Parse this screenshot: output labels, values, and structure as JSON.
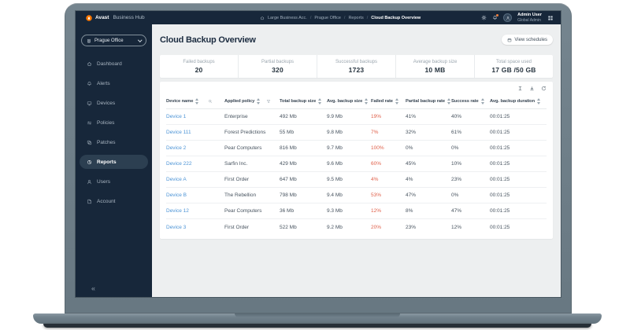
{
  "brand": {
    "name_bold": "Avast",
    "name_rest": "Business Hub"
  },
  "topbar": {
    "breadcrumb_icon": "home",
    "breadcrumb": [
      "Large Business Acc.",
      "Prague Office",
      "Reports",
      "Cloud Backup Overview"
    ],
    "right_icons": [
      "settings",
      "notifications"
    ],
    "apps_icon": "apps",
    "user": {
      "name": "Admin User",
      "role": "Global Admin",
      "avatar_icon": "person"
    }
  },
  "sidebar": {
    "site_selector": {
      "label": "Prague Office",
      "icon": "building",
      "chevron": "chevron-down"
    },
    "items": [
      {
        "label": "Dashboard",
        "icon": "dashboard",
        "active": false
      },
      {
        "label": "Alerts",
        "icon": "alerts",
        "active": false
      },
      {
        "label": "Devices",
        "icon": "devices",
        "active": false
      },
      {
        "label": "Policies",
        "icon": "policies",
        "active": false
      },
      {
        "label": "Patches",
        "icon": "patches",
        "active": false
      },
      {
        "label": "Reports",
        "icon": "reports",
        "active": true
      },
      {
        "label": "Users",
        "icon": "users",
        "active": false
      },
      {
        "label": "Account",
        "icon": "account",
        "active": false
      }
    ],
    "collapse_label": "«"
  },
  "page": {
    "title": "Cloud Backup Overview",
    "actions": [
      {
        "label": "View schedules",
        "icon": "calendar"
      }
    ]
  },
  "stats": [
    {
      "label": "Failed backups",
      "value": "20"
    },
    {
      "label": "Partial backups",
      "value": "320"
    },
    {
      "label": "Successful backups",
      "value": "1723"
    },
    {
      "label": "Average backup size",
      "value": "10 MB"
    },
    {
      "label": "Total space used",
      "value": "17 GB /50 GB"
    }
  ],
  "table": {
    "toolbar_icons": [
      "column-height",
      "download",
      "refresh"
    ],
    "columns": [
      {
        "label": "Device name",
        "sortable": true,
        "icon": "search"
      },
      {
        "label": "Applied policy",
        "sortable": true,
        "icon": "filter"
      },
      {
        "label": "Total backup size",
        "sortable": true
      },
      {
        "label": "Avg. backup size",
        "sortable": true
      },
      {
        "label": "Failed rate",
        "sortable": true
      },
      {
        "label": "Partial backup rate",
        "sortable": true
      },
      {
        "label": "Success rate",
        "sortable": true
      },
      {
        "label": "Avg. backup duration",
        "sortable": true
      }
    ],
    "rows": [
      [
        "Device 1",
        "Enterprise",
        "492 Mb",
        "9.9 Mb",
        "19%",
        "41%",
        "40%",
        "00:01:25"
      ],
      [
        "Device 111",
        "Forest Predictions",
        "55 Mb",
        "9.8 Mb",
        "7%",
        "32%",
        "61%",
        "00:01:25"
      ],
      [
        "Device 2",
        "Pear Computers",
        "816 Mb",
        "9.7 Mb",
        "100%",
        "0%",
        "0%",
        "00:01:25"
      ],
      [
        "Device 222",
        "Sarfin Inc.",
        "429 Mb",
        "9.6 Mb",
        "60%",
        "45%",
        "10%",
        "00:01:25"
      ],
      [
        "Device A",
        "First Order",
        "647 Mb",
        "9.5 Mb",
        "4%",
        "4%",
        "23%",
        "00:01:25"
      ],
      [
        "Device B",
        "The Rebellion",
        "798 Mb",
        "9.4 Mb",
        "53%",
        "47%",
        "0%",
        "00:01:25"
      ],
      [
        "Device 12",
        "Pear Computers",
        "36 Mb",
        "9.3 Mb",
        "12%",
        "8%",
        "47%",
        "00:01:25"
      ],
      [
        "Device 3",
        "First Order",
        "522 Mb",
        "9.2 Mb",
        "20%",
        "23%",
        "12%",
        "00:01:25"
      ]
    ]
  },
  "colors": {
    "accent_orange": "#ff7800",
    "badge_orange": "#f5803e",
    "link_blue": "#4d94d6",
    "failed_red": "#e0614b",
    "dark_navy": "#17273a",
    "active_item_bg": "#2c3f51",
    "main_bg": "#edeff0",
    "frame_gray": "#6e7e88"
  }
}
